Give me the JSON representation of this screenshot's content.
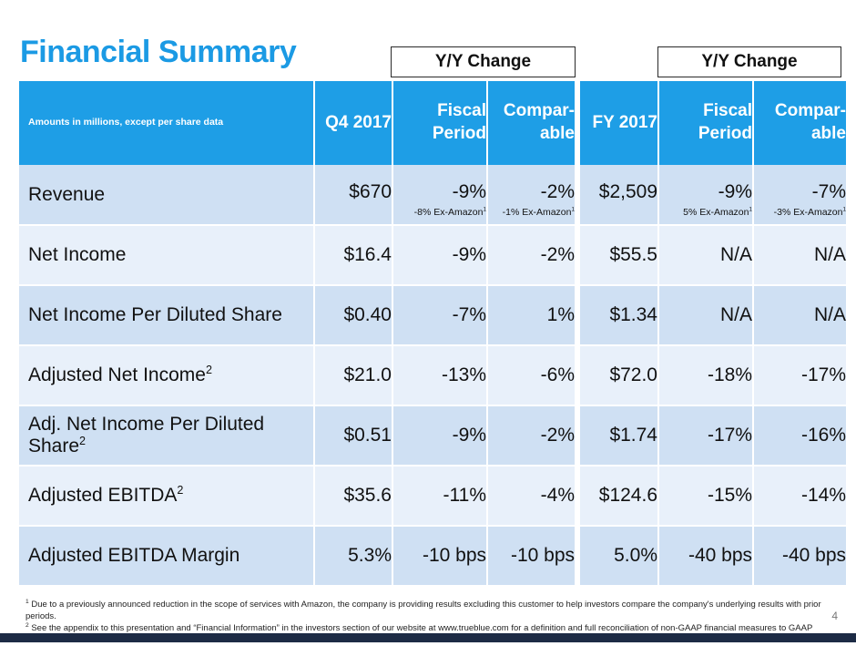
{
  "title": "Financial Summary",
  "yy_change_label_1": "Y/Y Change",
  "yy_change_label_2": "Y/Y Change",
  "header": {
    "label": "Amounts in millions, except per share data",
    "q4": "Q4 2017",
    "fiscal_line1": "Fiscal",
    "fiscal_line2": "Period",
    "compar_line1": "Compar-",
    "compar_line2": "able",
    "fy": "FY 2017"
  },
  "rows": [
    {
      "label": "Revenue",
      "label_sup": "",
      "q4": "$670",
      "q4_fiscal": "-9%",
      "q4_fiscal_sub": "-8% Ex-Amazon",
      "q4_fiscal_sub_sup": "1",
      "q4_comp": "-2%",
      "q4_comp_sub": "-1% Ex-Amazon",
      "q4_comp_sub_sup": "1",
      "fy": "$2,509",
      "fy_fiscal": "-9%",
      "fy_fiscal_sub": "5% Ex-Amazon",
      "fy_fiscal_sub_sup": "1",
      "fy_comp": "-7%",
      "fy_comp_sub": "-3% Ex-Amazon",
      "fy_comp_sub_sup": "1"
    },
    {
      "label": "Net Income",
      "label_sup": "",
      "q4": "$16.4",
      "q4_fiscal": "-9%",
      "q4_comp": "-2%",
      "fy": "$55.5",
      "fy_fiscal": "N/A",
      "fy_comp": "N/A"
    },
    {
      "label": "Net Income Per Diluted Share",
      "label_sup": "",
      "q4": "$0.40",
      "q4_fiscal": "-7%",
      "q4_comp": "1%",
      "fy": "$1.34",
      "fy_fiscal": "N/A",
      "fy_comp": "N/A"
    },
    {
      "label": "Adjusted Net Income",
      "label_sup": "2",
      "q4": "$21.0",
      "q4_fiscal": "-13%",
      "q4_comp": "-6%",
      "fy": "$72.0",
      "fy_fiscal": "-18%",
      "fy_comp": "-17%"
    },
    {
      "label": "Adj. Net Income Per Diluted Share",
      "label_sup": "2",
      "q4": "$0.51",
      "q4_fiscal": "-9%",
      "q4_comp": "-2%",
      "fy": "$1.74",
      "fy_fiscal": "-17%",
      "fy_comp": "-16%"
    },
    {
      "label": "Adjusted EBITDA",
      "label_sup": "2",
      "q4": "$35.6",
      "q4_fiscal": "-11%",
      "q4_comp": "-4%",
      "fy": "$124.6",
      "fy_fiscal": "-15%",
      "fy_comp": "-14%"
    },
    {
      "label": "Adjusted EBITDA Margin",
      "label_sup": "",
      "q4": "5.3%",
      "q4_fiscal": "-10 bps",
      "q4_comp": "-10 bps",
      "fy": "5.0%",
      "fy_fiscal": "-40 bps",
      "fy_comp": "-40 bps"
    }
  ],
  "footnotes": [
    {
      "num": "1",
      "text": "Due to a previously announced reduction in the scope of services with Amazon, the company is providing results excluding this customer to help investors compare the company's underlying results with prior periods."
    },
    {
      "num": "2",
      "text": "See the appendix to this presentation and “Financial Information” in the investors section of our website at www.trueblue.com for a definition and full reconciliation of non-GAAP financial measures to GAAP financial results."
    }
  ],
  "page_number": "4",
  "colors": {
    "title": "#1b9ae4",
    "header_bg": "#1e9ee6",
    "row_dark": "#cfe0f3",
    "row_light": "#e8f0fa",
    "bottom_bar": "#1d2b45"
  }
}
